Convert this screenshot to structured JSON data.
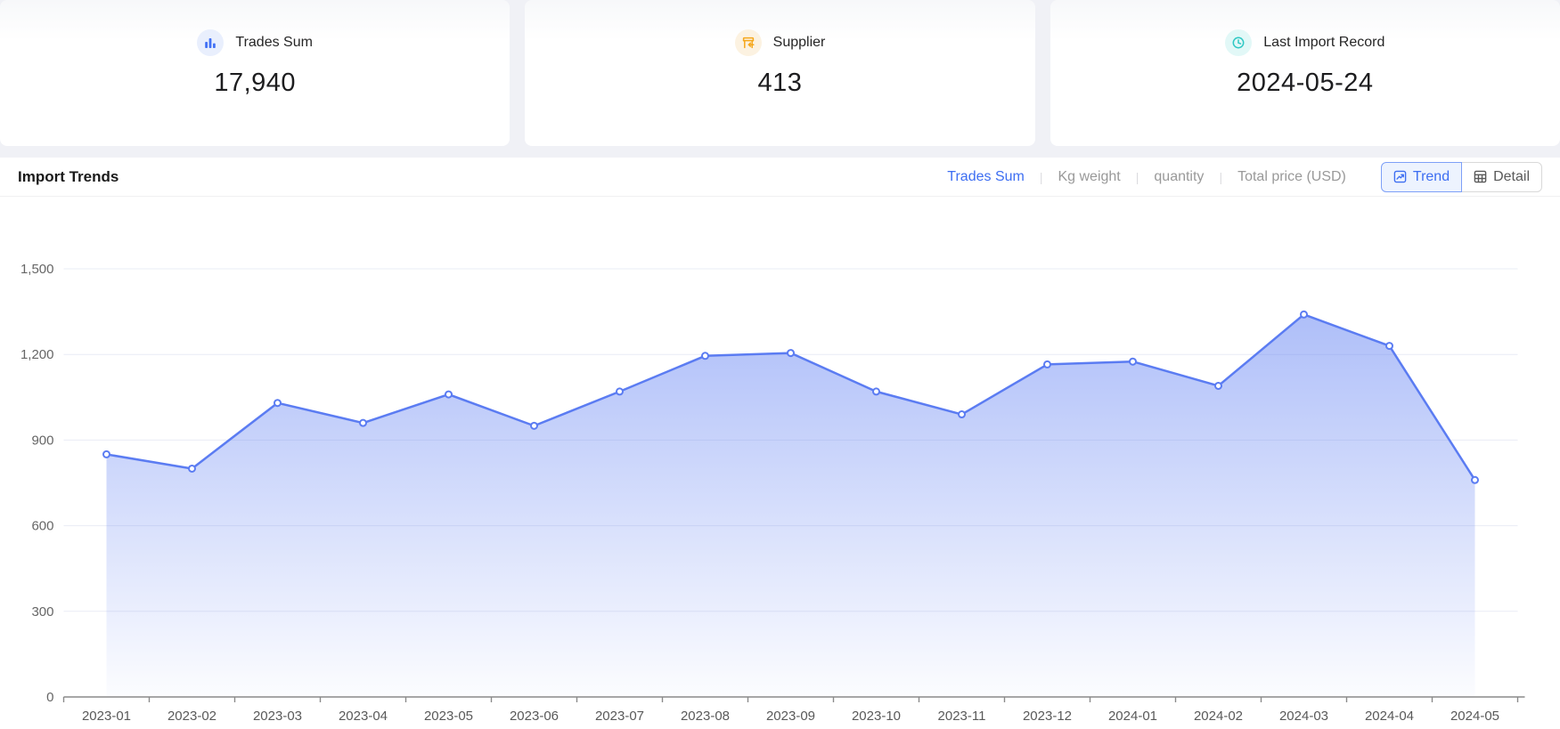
{
  "cards": [
    {
      "label": "Trades Sum",
      "value": "17,940",
      "icon": "bar-chart-icon",
      "accent": "#4372F5",
      "icon_bg": "#E9EFFD"
    },
    {
      "label": "Supplier",
      "value": "413",
      "icon": "storefront-icon",
      "accent": "#F5A71B",
      "icon_bg": "#FCF2E1"
    },
    {
      "label": "Last Import Record",
      "value": "2024-05-24",
      "icon": "clock-icon",
      "accent": "#2EC8C4",
      "icon_bg": "#E2F8F7"
    }
  ],
  "trends": {
    "title": "Import Trends",
    "separator": "|",
    "metrics": [
      {
        "label": "Trades Sum",
        "active": true
      },
      {
        "label": "Kg weight",
        "active": false
      },
      {
        "label": "quantity",
        "active": false
      },
      {
        "label": "Total price (USD)",
        "active": false
      }
    ],
    "view_toggle": [
      {
        "label": "Trend",
        "icon": "trend-chart-icon",
        "active": true
      },
      {
        "label": "Detail",
        "icon": "table-icon",
        "active": false
      }
    ]
  },
  "chart_data": {
    "type": "area",
    "title": "Import Trends",
    "categories": [
      "2023-01",
      "2023-02",
      "2023-03",
      "2023-04",
      "2023-05",
      "2023-06",
      "2023-07",
      "2023-08",
      "2023-09",
      "2023-10",
      "2023-11",
      "2023-12",
      "2024-01",
      "2024-02",
      "2024-03",
      "2024-04",
      "2024-05"
    ],
    "series": [
      {
        "name": "Trades Sum",
        "values": [
          850,
          800,
          1030,
          960,
          1060,
          950,
          1070,
          1195,
          1205,
          1070,
          990,
          1165,
          1175,
          1090,
          1340,
          1230,
          760
        ]
      }
    ],
    "xlabel": "",
    "ylabel": "",
    "ylim": [
      0,
      1500
    ],
    "yticks": [
      0,
      300,
      600,
      900,
      1200,
      1500
    ],
    "ytick_labels": [
      "0",
      "300",
      "600",
      "900",
      "1,200",
      "1,500"
    ],
    "grid": true,
    "legend": "none",
    "line_color": "#5B7CF2",
    "marker_fill": "#ffffff",
    "area_top_color": "rgba(91,124,242,0.55)",
    "area_bottom_color": "rgba(91,124,242,0.02)",
    "grid_color": "#E9ECF5",
    "axis_color": "#8a8a8a",
    "ytick_color": "#666666",
    "xtick_color": "#595959"
  }
}
